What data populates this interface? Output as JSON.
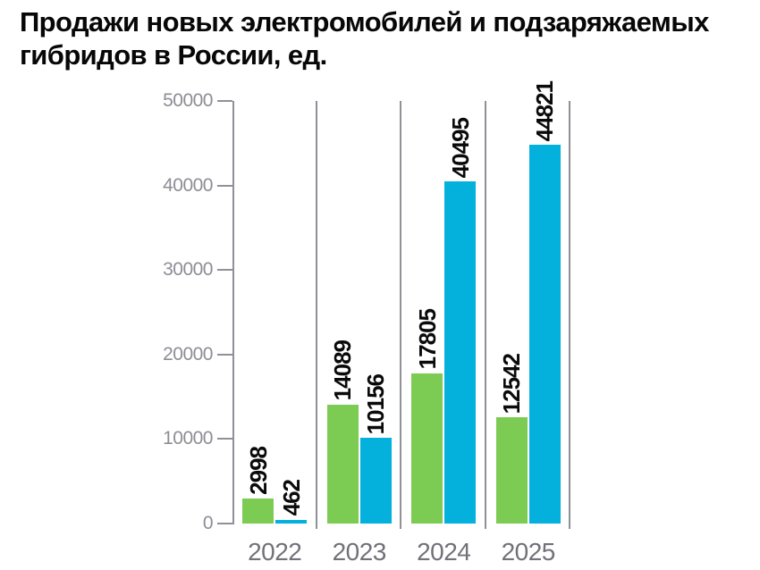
{
  "title": {
    "line1": "Продажи новых электромобилей и подзаряжаемых",
    "line2": "гибридов в России, ед.",
    "full": "Продажи новых электромобилей и подзаряжаемых гибридов в России, ед."
  },
  "chart_data": {
    "type": "bar",
    "title": "Продажи новых электромобилей и подзаряжаемых гибридов в России, ед.",
    "categories": [
      "2022",
      "2023",
      "2024",
      "2025"
    ],
    "series": [
      {
        "name": "электромобили",
        "color": "#7CCB52",
        "values": [
          2998,
          14089,
          17805,
          12542
        ]
      },
      {
        "name": "подзаряжаемые гибриды",
        "color": "#04B0DC",
        "values": [
          462,
          10156,
          40495,
          44821
        ]
      }
    ],
    "ylim": [
      0,
      50000
    ],
    "yticks": [
      0,
      10000,
      20000,
      30000,
      40000,
      50000
    ],
    "xlabel": "",
    "ylabel": "",
    "legend": "none",
    "grid": "vertical-group-dividers",
    "value_labels": "rotated-90-above-bars"
  },
  "colors": {
    "green_bar": "#7CCB52",
    "blue_bar": "#04B0DC",
    "axis": "#909098",
    "y_tick_label": "#8d8d95",
    "year_label": "#717179",
    "value_label": "#0a0a0a",
    "background": "#ffffff",
    "title": "#070707"
  }
}
